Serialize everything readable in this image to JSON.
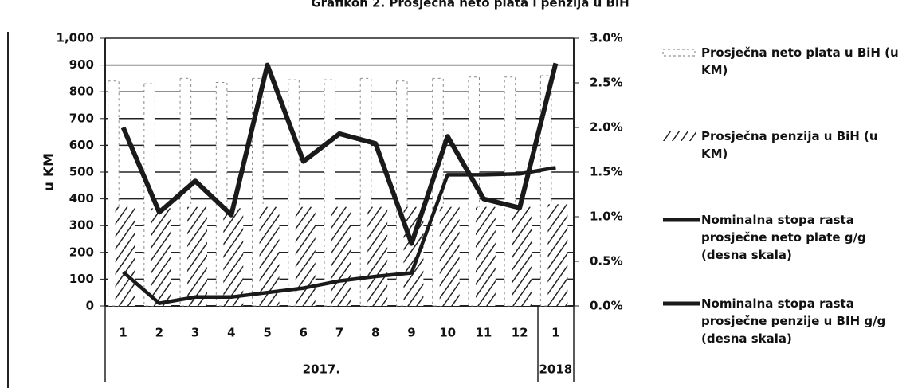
{
  "chart_data": {
    "type": "bar_line",
    "title": "Grafikon 2. Prosječna neto plata i penzija u BiH",
    "ylabel": "u KM",
    "categories": [
      "1",
      "2",
      "3",
      "4",
      "5",
      "6",
      "7",
      "8",
      "9",
      "10",
      "11",
      "12",
      "1"
    ],
    "groups": [
      "2017.",
      "2018"
    ],
    "series": [
      {
        "name": "Prosječna neto plata u BiH (u KM)",
        "kind": "bar",
        "color": "#ffffff",
        "values": [
          840,
          830,
          850,
          835,
          850,
          845,
          845,
          850,
          840,
          850,
          855,
          855,
          860
        ]
      },
      {
        "name": "Prosječna penzija u BiH (u KM)",
        "kind": "bar",
        "color": "#000000",
        "values": [
          370,
          365,
          370,
          365,
          370,
          370,
          370,
          370,
          370,
          370,
          370,
          370,
          380
        ]
      },
      {
        "name": "Nominalna stopa rasta prosječne neto plate g/g (desna skala)",
        "kind": "line",
        "axis": "y2",
        "color": "#1a1a1a",
        "values": [
          2.0,
          1.05,
          1.4,
          1.02,
          2.7,
          1.62,
          1.93,
          1.82,
          0.7,
          1.9,
          1.2,
          1.1,
          2.72
        ]
      },
      {
        "name": "Nominalna stopa rasta prosječne penzije u BIH g/g (desna skala)",
        "kind": "line",
        "axis": "y2",
        "color": "#1a1a1a",
        "values": [
          0.38,
          0.03,
          0.1,
          0.1,
          0.15,
          0.2,
          0.28,
          0.33,
          0.37,
          1.47,
          1.47,
          1.48,
          1.55
        ]
      }
    ],
    "ylim": [
      0,
      1000
    ],
    "yticks": [
      0,
      100,
      200,
      300,
      400,
      500,
      600,
      700,
      800,
      900,
      {
        "value": 1000,
        "label": "1,000"
      }
    ],
    "y2lim": [
      0,
      3
    ],
    "y2ticks": [
      {
        "value": 0,
        "label": "0.0%"
      },
      {
        "value": 0.5,
        "label": "0.5%"
      },
      {
        "value": 1,
        "label": "1.0%"
      },
      {
        "value": 1.5,
        "label": "1.5%"
      },
      {
        "value": 2,
        "label": "2.0%"
      },
      {
        "value": 2.5,
        "label": "2.5%"
      },
      {
        "value": 3,
        "label": "3.0%"
      }
    ],
    "grid": true
  }
}
